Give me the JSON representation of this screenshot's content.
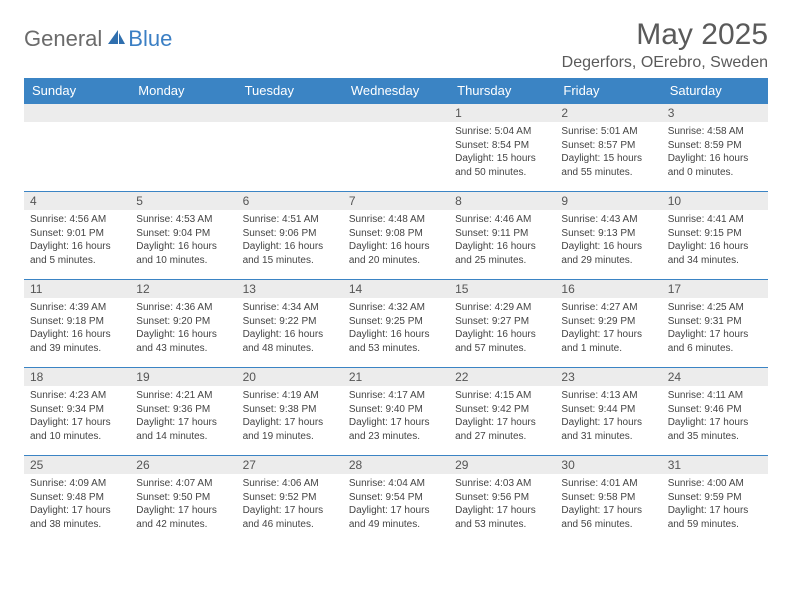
{
  "brand": {
    "word1": "General",
    "word2": "Blue"
  },
  "title": "May 2025",
  "location": "Degerfors, OErebro, Sweden",
  "colors": {
    "header_bg": "#3b84c4",
    "header_text": "#ffffff",
    "daynum_bg": "#ececec",
    "rule": "#3b84c4",
    "body_text": "#444444",
    "title_text": "#5a5a5a"
  },
  "weekdays": [
    "Sunday",
    "Monday",
    "Tuesday",
    "Wednesday",
    "Thursday",
    "Friday",
    "Saturday"
  ],
  "layout": {
    "first_weekday_index": 4,
    "days_in_month": 31
  },
  "days": {
    "1": {
      "sunrise": "5:04 AM",
      "sunset": "8:54 PM",
      "daylight": "15 hours and 50 minutes."
    },
    "2": {
      "sunrise": "5:01 AM",
      "sunset": "8:57 PM",
      "daylight": "15 hours and 55 minutes."
    },
    "3": {
      "sunrise": "4:58 AM",
      "sunset": "8:59 PM",
      "daylight": "16 hours and 0 minutes."
    },
    "4": {
      "sunrise": "4:56 AM",
      "sunset": "9:01 PM",
      "daylight": "16 hours and 5 minutes."
    },
    "5": {
      "sunrise": "4:53 AM",
      "sunset": "9:04 PM",
      "daylight": "16 hours and 10 minutes."
    },
    "6": {
      "sunrise": "4:51 AM",
      "sunset": "9:06 PM",
      "daylight": "16 hours and 15 minutes."
    },
    "7": {
      "sunrise": "4:48 AM",
      "sunset": "9:08 PM",
      "daylight": "16 hours and 20 minutes."
    },
    "8": {
      "sunrise": "4:46 AM",
      "sunset": "9:11 PM",
      "daylight": "16 hours and 25 minutes."
    },
    "9": {
      "sunrise": "4:43 AM",
      "sunset": "9:13 PM",
      "daylight": "16 hours and 29 minutes."
    },
    "10": {
      "sunrise": "4:41 AM",
      "sunset": "9:15 PM",
      "daylight": "16 hours and 34 minutes."
    },
    "11": {
      "sunrise": "4:39 AM",
      "sunset": "9:18 PM",
      "daylight": "16 hours and 39 minutes."
    },
    "12": {
      "sunrise": "4:36 AM",
      "sunset": "9:20 PM",
      "daylight": "16 hours and 43 minutes."
    },
    "13": {
      "sunrise": "4:34 AM",
      "sunset": "9:22 PM",
      "daylight": "16 hours and 48 minutes."
    },
    "14": {
      "sunrise": "4:32 AM",
      "sunset": "9:25 PM",
      "daylight": "16 hours and 53 minutes."
    },
    "15": {
      "sunrise": "4:29 AM",
      "sunset": "9:27 PM",
      "daylight": "16 hours and 57 minutes."
    },
    "16": {
      "sunrise": "4:27 AM",
      "sunset": "9:29 PM",
      "daylight": "17 hours and 1 minute."
    },
    "17": {
      "sunrise": "4:25 AM",
      "sunset": "9:31 PM",
      "daylight": "17 hours and 6 minutes."
    },
    "18": {
      "sunrise": "4:23 AM",
      "sunset": "9:34 PM",
      "daylight": "17 hours and 10 minutes."
    },
    "19": {
      "sunrise": "4:21 AM",
      "sunset": "9:36 PM",
      "daylight": "17 hours and 14 minutes."
    },
    "20": {
      "sunrise": "4:19 AM",
      "sunset": "9:38 PM",
      "daylight": "17 hours and 19 minutes."
    },
    "21": {
      "sunrise": "4:17 AM",
      "sunset": "9:40 PM",
      "daylight": "17 hours and 23 minutes."
    },
    "22": {
      "sunrise": "4:15 AM",
      "sunset": "9:42 PM",
      "daylight": "17 hours and 27 minutes."
    },
    "23": {
      "sunrise": "4:13 AM",
      "sunset": "9:44 PM",
      "daylight": "17 hours and 31 minutes."
    },
    "24": {
      "sunrise": "4:11 AM",
      "sunset": "9:46 PM",
      "daylight": "17 hours and 35 minutes."
    },
    "25": {
      "sunrise": "4:09 AM",
      "sunset": "9:48 PM",
      "daylight": "17 hours and 38 minutes."
    },
    "26": {
      "sunrise": "4:07 AM",
      "sunset": "9:50 PM",
      "daylight": "17 hours and 42 minutes."
    },
    "27": {
      "sunrise": "4:06 AM",
      "sunset": "9:52 PM",
      "daylight": "17 hours and 46 minutes."
    },
    "28": {
      "sunrise": "4:04 AM",
      "sunset": "9:54 PM",
      "daylight": "17 hours and 49 minutes."
    },
    "29": {
      "sunrise": "4:03 AM",
      "sunset": "9:56 PM",
      "daylight": "17 hours and 53 minutes."
    },
    "30": {
      "sunrise": "4:01 AM",
      "sunset": "9:58 PM",
      "daylight": "17 hours and 56 minutes."
    },
    "31": {
      "sunrise": "4:00 AM",
      "sunset": "9:59 PM",
      "daylight": "17 hours and 59 minutes."
    }
  },
  "field_labels": {
    "sunrise": "Sunrise:",
    "sunset": "Sunset:",
    "daylight": "Daylight:"
  }
}
